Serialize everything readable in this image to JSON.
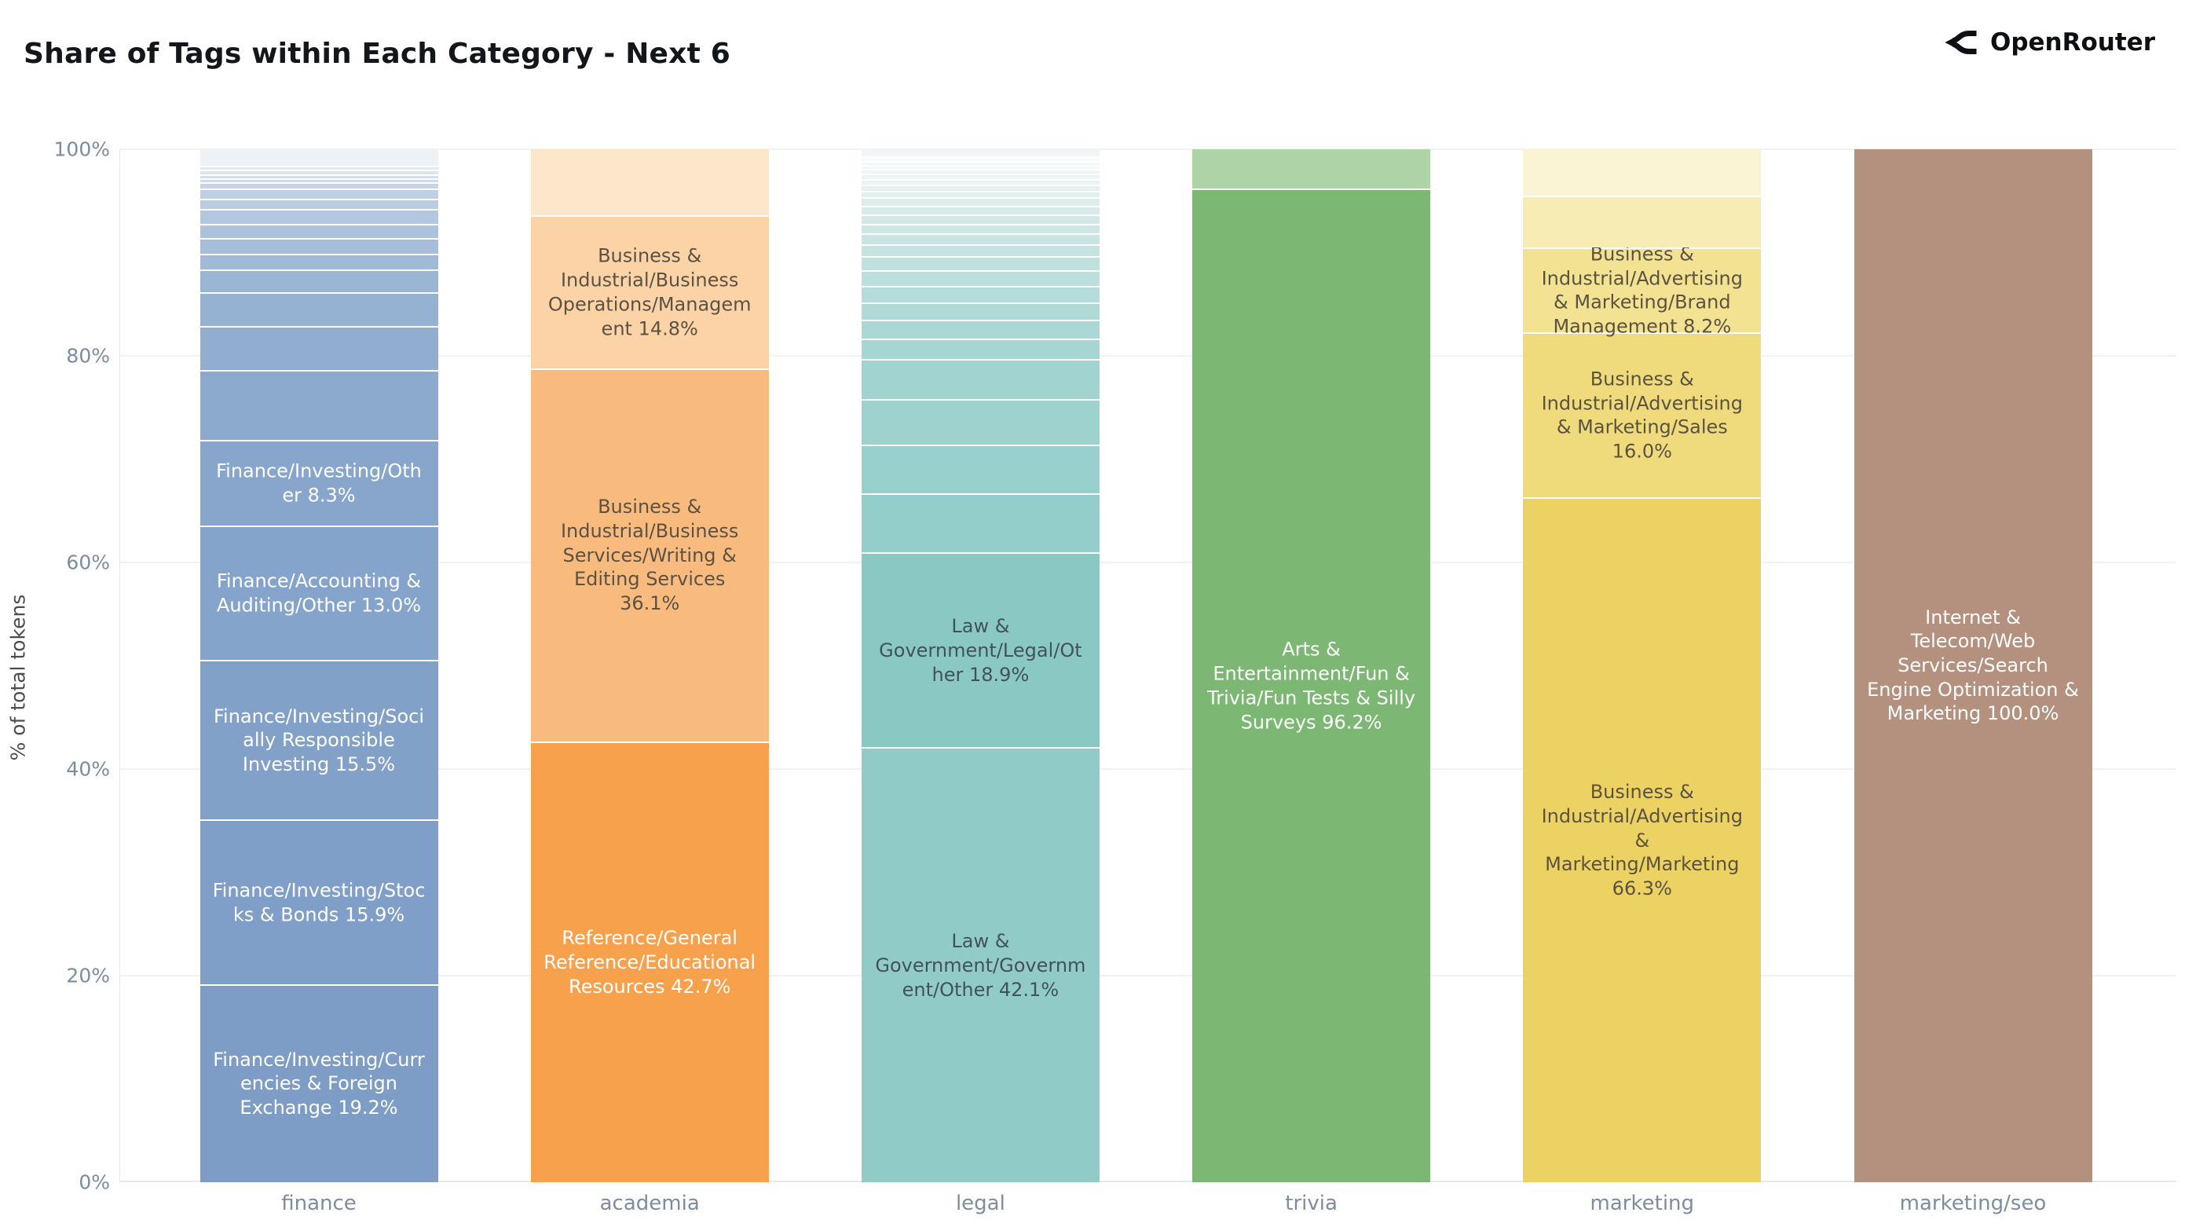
{
  "header": {
    "title": "Share of Tags within Each Category - Next 6",
    "brand": "OpenRouter"
  },
  "chart_data": {
    "type": "bar",
    "stacked": true,
    "title": "Share of Tags within Each Category - Next 6",
    "xlabel": "",
    "ylabel": "% of total tokens",
    "ylim": [
      0,
      100
    ],
    "grid": "horizontal",
    "legend": false,
    "ytick_values": [
      0,
      20,
      40,
      60,
      80,
      100
    ],
    "ytick_labels": [
      "0%",
      "20%",
      "40%",
      "60%",
      "80%",
      "100%"
    ],
    "categories": [
      "finance",
      "academia",
      "legal",
      "trivia",
      "marketing",
      "marketing/seo"
    ],
    "bars": [
      {
        "category": "finance",
        "segments": [
          {
            "value": 19.2,
            "label": "Finance/Investing/Currencies & Foreign Exchange 19.2%",
            "color": "#7d9dc7",
            "text_color": "#ffffff"
          },
          {
            "value": 15.9,
            "label": "Finance/Investing/Stocks & Bonds 15.9%",
            "color": "#7f9fc8",
            "text_color": "#ffffff"
          },
          {
            "value": 15.5,
            "label": "Finance/Investing/Socially Responsible Investing 15.5%",
            "color": "#82a1c9",
            "text_color": "#ffffff"
          },
          {
            "value": 13.0,
            "label": "Finance/Accounting & Auditing/Other 13.0%",
            "color": "#85a4cb",
            "text_color": "#ffffff"
          },
          {
            "value": 8.3,
            "label": "Finance/Investing/Other 8.3%",
            "color": "#88a6cc",
            "text_color": "#ffffff"
          },
          {
            "value": 6.7,
            "label": null,
            "color": "#8caace"
          },
          {
            "value": 4.3,
            "label": null,
            "color": "#91aed1"
          },
          {
            "value": 3.3,
            "label": null,
            "color": "#96b2d3"
          },
          {
            "value": 2.2,
            "label": null,
            "color": "#9bb6d5"
          },
          {
            "value": 1.5,
            "label": null,
            "color": "#a1bad8"
          },
          {
            "value": 1.5,
            "label": null,
            "color": "#a7beda"
          },
          {
            "value": 1.4,
            "label": null,
            "color": "#adc3dd"
          },
          {
            "value": 1.4,
            "label": null,
            "color": "#b3c7df"
          },
          {
            "value": 1.0,
            "label": null,
            "color": "#bacce2"
          },
          {
            "value": 1.0,
            "label": null,
            "color": "#c0d0e4"
          },
          {
            "value": 0.6,
            "label": null,
            "color": "#c7d5e7"
          },
          {
            "value": 0.4,
            "label": null,
            "color": "#cedae9"
          },
          {
            "value": 0.4,
            "label": null,
            "color": "#d5dfec"
          },
          {
            "value": 0.4,
            "label": null,
            "color": "#dce4ee"
          },
          {
            "value": 0.4,
            "label": null,
            "color": "#e3e9f1"
          },
          {
            "value": 1.6,
            "label": null,
            "color": "#edf2f7"
          }
        ]
      },
      {
        "category": "academia",
        "segments": [
          {
            "value": 42.7,
            "label": "Reference/General Reference/Educational Resources 42.7%",
            "color": "#f7a14d",
            "text_color": "#ffffff"
          },
          {
            "value": 36.1,
            "label": "Business & Industrial/Business Services/Writing & Editing Services 36.1%",
            "color": "#f9ba7d",
            "text_color": "#5b5244"
          },
          {
            "value": 14.8,
            "label": "Business & Industrial/Business Operations/Management 14.8%",
            "color": "#fbd3a6",
            "text_color": "#5b5244"
          },
          {
            "value": 6.4,
            "label": null,
            "color": "#fde7cb"
          }
        ]
      },
      {
        "category": "legal",
        "segments": [
          {
            "value": 42.1,
            "label": "Law & Government/Government/Other 42.1%",
            "color": "#90cbc7",
            "text_color": "#42525c"
          },
          {
            "value": 18.9,
            "label": "Law & Government/Legal/Other 18.9%",
            "color": "#8ac8c4",
            "text_color": "#42525c"
          },
          {
            "value": 5.7,
            "label": null,
            "color": "#94cecb"
          },
          {
            "value": 4.7,
            "label": null,
            "color": "#98d0cd"
          },
          {
            "value": 4.4,
            "label": null,
            "color": "#9dd2cf"
          },
          {
            "value": 3.9,
            "label": null,
            "color": "#a1d4d1"
          },
          {
            "value": 2.0,
            "label": null,
            "color": "#a6d6d3"
          },
          {
            "value": 1.8,
            "label": null,
            "color": "#abd8d6"
          },
          {
            "value": 1.7,
            "label": null,
            "color": "#b0dad8"
          },
          {
            "value": 1.6,
            "label": null,
            "color": "#b5dcda"
          },
          {
            "value": 1.5,
            "label": null,
            "color": "#badfdc"
          },
          {
            "value": 1.35,
            "label": null,
            "color": "#bfe1de"
          },
          {
            "value": 1.15,
            "label": null,
            "color": "#c4e3e1"
          },
          {
            "value": 1.05,
            "label": null,
            "color": "#c9e5e3"
          },
          {
            "value": 0.95,
            "label": null,
            "color": "#cee7e5"
          },
          {
            "value": 0.9,
            "label": null,
            "color": "#d3e9e7"
          },
          {
            "value": 0.85,
            "label": null,
            "color": "#d8ebe9"
          },
          {
            "value": 0.8,
            "label": null,
            "color": "#dcedeb"
          },
          {
            "value": 0.65,
            "label": null,
            "color": "#e1efed"
          },
          {
            "value": 0.6,
            "label": null,
            "color": "#e5f1f0"
          },
          {
            "value": 0.55,
            "label": null,
            "color": "#e9f3f2"
          },
          {
            "value": 0.5,
            "label": null,
            "color": "#edf5f4"
          },
          {
            "value": 0.45,
            "label": null,
            "color": "#f0f6f5"
          },
          {
            "value": 0.4,
            "label": null,
            "color": "#f2f8f7"
          },
          {
            "value": 0.4,
            "label": null,
            "color": "#f4f9f8"
          },
          {
            "value": 0.4,
            "label": null,
            "color": "#f6fafa"
          },
          {
            "value": 0.7,
            "label": null,
            "color": "#f0f6f7"
          }
        ]
      },
      {
        "category": "trivia",
        "segments": [
          {
            "value": 96.2,
            "label": "Arts & Entertainment/Fun & Trivia/Fun Tests & Silly Surveys 96.2%",
            "color": "#7cb873",
            "text_color": "#ffffff"
          },
          {
            "value": 3.8,
            "label": null,
            "color": "#aed3a6"
          }
        ]
      },
      {
        "category": "marketing",
        "segments": [
          {
            "value": 66.3,
            "label": "Business & Industrial/Advertising & Marketing/Marketing 66.3%",
            "color": "#ecd263",
            "text_color": "#5b5340"
          },
          {
            "value": 16.0,
            "label": "Business & Industrial/Advertising & Marketing/Sales 16.0%",
            "color": "#efda7c",
            "text_color": "#5b5340"
          },
          {
            "value": 8.2,
            "label": "Business & Industrial/Advertising & Marketing/Brand Management 8.2%",
            "color": "#f2e292",
            "text_color": "#5b5340"
          },
          {
            "value": 5.0,
            "label": null,
            "color": "#f7ecb4"
          },
          {
            "value": 4.5,
            "label": null,
            "color": "#fbf4d4"
          }
        ]
      },
      {
        "category": "marketing/seo",
        "segments": [
          {
            "value": 100.0,
            "label": "Internet & Telecom/Web Services/Search Engine Optimization & Marketing 100.0%",
            "color": "#b4907e",
            "text_color": "#ffffff"
          }
        ]
      }
    ]
  }
}
